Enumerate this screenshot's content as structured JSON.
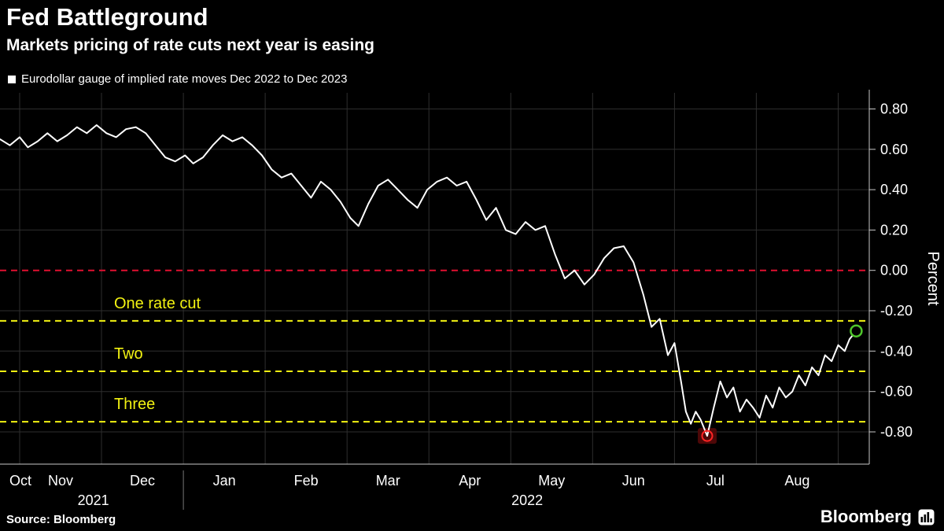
{
  "header": {
    "title": "Fed Battleground",
    "subtitle": "Markets pricing of rate cuts next year is easing"
  },
  "legend": {
    "label": "Eurodollar gauge of implied rate moves Dec 2022 to Dec 2023"
  },
  "footer": {
    "source": "Source: Bloomberg",
    "brand": "Bloomberg"
  },
  "colors": {
    "background": "#000000",
    "line": "#ffffff",
    "grid": "#2e2e2e",
    "axis": "#c8c8c8",
    "zero_line": "#e01030",
    "rate_cut_line": "#f3f312",
    "end_marker": "#4fc62b",
    "low_marker": "#ff2424",
    "low_marker_fill": "#4d0808"
  },
  "chart_data": {
    "type": "line",
    "title": "Fed Battleground",
    "series_name": "Eurodollar gauge of implied rate moves Dec 2022 to Dec 2023",
    "ylabel": "Percent",
    "ylim": [
      -0.96,
      0.88
    ],
    "x_domain": [
      0.26,
      10.88
    ],
    "x_unit": "months since Oct 1 2021",
    "grid": true,
    "y_ticks": [
      {
        "label": "0.80",
        "value": 0.8
      },
      {
        "label": "0.60",
        "value": 0.6
      },
      {
        "label": "0.40",
        "value": 0.4
      },
      {
        "label": "0.20",
        "value": 0.2
      },
      {
        "label": "0.00",
        "value": 0.0
      },
      {
        "label": "-0.20",
        "value": -0.2
      },
      {
        "label": "-0.40",
        "value": -0.4
      },
      {
        "label": "-0.60",
        "value": -0.6
      },
      {
        "label": "-0.80",
        "value": -0.8
      }
    ],
    "x_ticks": [
      {
        "label": "Oct",
        "m": 0
      },
      {
        "label": "Nov",
        "m": 1
      },
      {
        "label": "Dec",
        "m": 2
      },
      {
        "label": "Jan",
        "m": 3
      },
      {
        "label": "Feb",
        "m": 4
      },
      {
        "label": "Mar",
        "m": 5
      },
      {
        "label": "Apr",
        "m": 6
      },
      {
        "label": "May",
        "m": 7
      },
      {
        "label": "Jun",
        "m": 8
      },
      {
        "label": "Jul",
        "m": 9
      },
      {
        "label": "Aug",
        "m": 10
      }
    ],
    "year_labels": [
      {
        "label": "2021",
        "m_center": 1.4
      },
      {
        "label": "2022",
        "m_center": 6.7
      }
    ],
    "year_divider_m": 2.5,
    "reference_lines": [
      {
        "value": 0.0,
        "label": "",
        "color": "#e01030"
      },
      {
        "value": -0.25,
        "label": "One rate cut",
        "color": "#f3f312"
      },
      {
        "value": -0.5,
        "label": "Two",
        "color": "#f3f312"
      },
      {
        "value": -0.75,
        "label": "Three",
        "color": "#f3f312"
      }
    ],
    "markers": [
      {
        "type": "low",
        "m": 8.9,
        "value": -0.82
      },
      {
        "type": "latest",
        "m": 10.72,
        "value": -0.3
      }
    ],
    "points": [
      [
        0.26,
        0.65
      ],
      [
        0.38,
        0.62
      ],
      [
        0.5,
        0.66
      ],
      [
        0.6,
        0.61
      ],
      [
        0.72,
        0.64
      ],
      [
        0.84,
        0.68
      ],
      [
        0.96,
        0.64
      ],
      [
        1.08,
        0.67
      ],
      [
        1.2,
        0.71
      ],
      [
        1.32,
        0.68
      ],
      [
        1.44,
        0.72
      ],
      [
        1.56,
        0.68
      ],
      [
        1.68,
        0.66
      ],
      [
        1.8,
        0.7
      ],
      [
        1.92,
        0.71
      ],
      [
        2.04,
        0.68
      ],
      [
        2.16,
        0.62
      ],
      [
        2.28,
        0.56
      ],
      [
        2.4,
        0.54
      ],
      [
        2.52,
        0.57
      ],
      [
        2.62,
        0.53
      ],
      [
        2.74,
        0.56
      ],
      [
        2.86,
        0.62
      ],
      [
        2.98,
        0.67
      ],
      [
        3.1,
        0.64
      ],
      [
        3.22,
        0.66
      ],
      [
        3.34,
        0.62
      ],
      [
        3.46,
        0.57
      ],
      [
        3.58,
        0.5
      ],
      [
        3.7,
        0.46
      ],
      [
        3.82,
        0.48
      ],
      [
        3.94,
        0.42
      ],
      [
        4.06,
        0.36
      ],
      [
        4.18,
        0.44
      ],
      [
        4.3,
        0.4
      ],
      [
        4.42,
        0.34
      ],
      [
        4.54,
        0.26
      ],
      [
        4.64,
        0.22
      ],
      [
        4.76,
        0.33
      ],
      [
        4.88,
        0.42
      ],
      [
        5.0,
        0.45
      ],
      [
        5.12,
        0.4
      ],
      [
        5.24,
        0.35
      ],
      [
        5.36,
        0.31
      ],
      [
        5.48,
        0.4
      ],
      [
        5.6,
        0.44
      ],
      [
        5.72,
        0.46
      ],
      [
        5.84,
        0.42
      ],
      [
        5.96,
        0.44
      ],
      [
        6.08,
        0.35
      ],
      [
        6.2,
        0.25
      ],
      [
        6.32,
        0.31
      ],
      [
        6.44,
        0.2
      ],
      [
        6.56,
        0.18
      ],
      [
        6.68,
        0.24
      ],
      [
        6.8,
        0.2
      ],
      [
        6.92,
        0.22
      ],
      [
        7.04,
        0.08
      ],
      [
        7.16,
        -0.04
      ],
      [
        7.28,
        0.0
      ],
      [
        7.4,
        -0.07
      ],
      [
        7.52,
        -0.02
      ],
      [
        7.64,
        0.06
      ],
      [
        7.76,
        0.11
      ],
      [
        7.88,
        0.12
      ],
      [
        8.0,
        0.04
      ],
      [
        8.12,
        -0.12
      ],
      [
        8.22,
        -0.28
      ],
      [
        8.32,
        -0.24
      ],
      [
        8.42,
        -0.42
      ],
      [
        8.5,
        -0.36
      ],
      [
        8.58,
        -0.55
      ],
      [
        8.64,
        -0.7
      ],
      [
        8.7,
        -0.76
      ],
      [
        8.76,
        -0.7
      ],
      [
        8.82,
        -0.74
      ],
      [
        8.9,
        -0.82
      ],
      [
        8.98,
        -0.68
      ],
      [
        9.06,
        -0.55
      ],
      [
        9.14,
        -0.63
      ],
      [
        9.22,
        -0.58
      ],
      [
        9.3,
        -0.7
      ],
      [
        9.38,
        -0.64
      ],
      [
        9.46,
        -0.68
      ],
      [
        9.54,
        -0.73
      ],
      [
        9.62,
        -0.62
      ],
      [
        9.7,
        -0.68
      ],
      [
        9.78,
        -0.58
      ],
      [
        9.86,
        -0.63
      ],
      [
        9.94,
        -0.6
      ],
      [
        10.02,
        -0.52
      ],
      [
        10.1,
        -0.57
      ],
      [
        10.18,
        -0.48
      ],
      [
        10.26,
        -0.52
      ],
      [
        10.34,
        -0.42
      ],
      [
        10.42,
        -0.45
      ],
      [
        10.5,
        -0.37
      ],
      [
        10.58,
        -0.4
      ],
      [
        10.64,
        -0.34
      ],
      [
        10.72,
        -0.3
      ]
    ]
  }
}
